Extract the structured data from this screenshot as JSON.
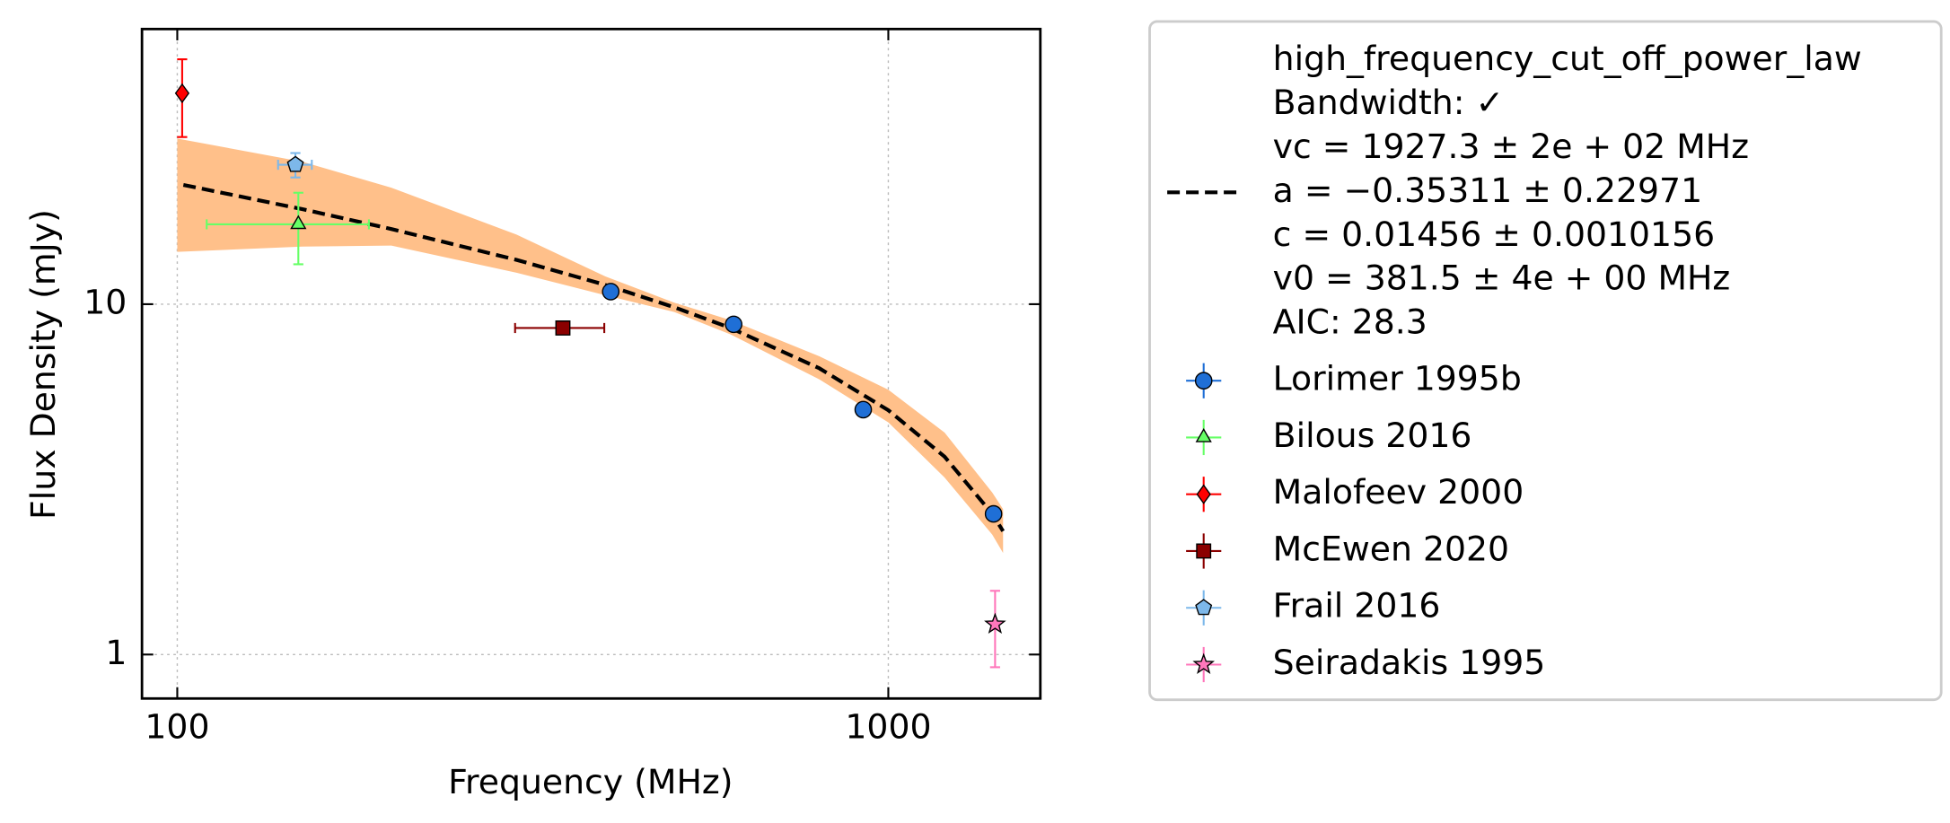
{
  "chart_data": {
    "type": "scatter",
    "xlabel": "Frequency (MHz)",
    "ylabel": "Flux Density (mJy)",
    "xscale": "log",
    "yscale": "log",
    "xlim": [
      89.2,
      1636
    ],
    "ylim": [
      0.749,
      61.0
    ],
    "xticks": [
      100,
      1000
    ],
    "yticks": [
      1,
      10
    ],
    "grid": true,
    "legend": "outside right",
    "fit": {
      "name": "high_frequency_cut_off_power_law",
      "label_lines": [
        "high_frequency_cut_off_power_law",
        "Bandwidth: ✓",
        "vc = 1927.3 ± 2e + 02 MHz",
        "a = −0.35311 ± 0.22971",
        "c = 0.01456 ± 0.0010156",
        "v0 = 381.5 ± 4e + 00 MHz",
        "AIC: 28.3"
      ],
      "color": "#000000",
      "band_color": "#ffc08a",
      "x": [
        102,
        150,
        200,
        300,
        400,
        500,
        600,
        800,
        1000,
        1200,
        1400,
        1450
      ],
      "values": [
        21.9,
        18.67,
        16.39,
        13.38,
        11.35,
        9.8,
        8.55,
        6.56,
        4.98,
        3.67,
        2.52,
        2.25
      ],
      "band_x": [
        100,
        150,
        200,
        300,
        400,
        500,
        600,
        800,
        1000,
        1200,
        1400,
        1450
      ],
      "band_upper": [
        29.7,
        25.5,
        21.5,
        15.8,
        12.0,
        10.1,
        9.0,
        7.1,
        5.7,
        4.3,
        2.9,
        2.6
      ],
      "band_lower": [
        14.1,
        14.6,
        14.7,
        12.3,
        10.6,
        9.5,
        8.2,
        6.1,
        4.6,
        3.2,
        2.2,
        1.95
      ]
    },
    "series": [
      {
        "name": "Lorimer 1995b",
        "color": "#1f6fd6",
        "marker": "circle",
        "x": [
          407,
          606,
          922,
          1406
        ],
        "values": [
          10.86,
          8.76,
          5.0,
          2.52
        ],
        "xerr": [
          null,
          null,
          null,
          null
        ],
        "yerr": [
          0.25,
          0.2,
          0.2,
          0.1
        ]
      },
      {
        "name": "Bilous 2016",
        "color": "#66ff66",
        "marker": "triangle",
        "x": [
          148
        ],
        "values": [
          16.9
        ],
        "xerr": [
          38
        ],
        "yerr": [
          3.9
        ]
      },
      {
        "name": "Malofeev 2000",
        "color": "#ff0000",
        "marker": "diamond",
        "x": [
          101.6
        ],
        "values": [
          40.0
        ],
        "xerr": [
          null
        ],
        "yerr": [
          10
        ]
      },
      {
        "name": "McEwen 2020",
        "color": "#8b0000",
        "marker": "square",
        "x": [
          348.6
        ],
        "values": [
          8.55
        ],
        "xerr": [
          50
        ],
        "yerr": [
          0.3
        ]
      },
      {
        "name": "Frail 2016",
        "color": "#7db8ea",
        "marker": "pentagon",
        "x": [
          146.6
        ],
        "values": [
          25.0
        ],
        "xerr": [
          8
        ],
        "yerr": [
          2
        ]
      },
      {
        "name": "Seiradakis 1995",
        "color": "#ff77bb",
        "marker": "star",
        "x": [
          1413
        ],
        "values": [
          1.22
        ],
        "xerr": [
          null
        ],
        "yerr": [
          0.3
        ]
      }
    ]
  }
}
